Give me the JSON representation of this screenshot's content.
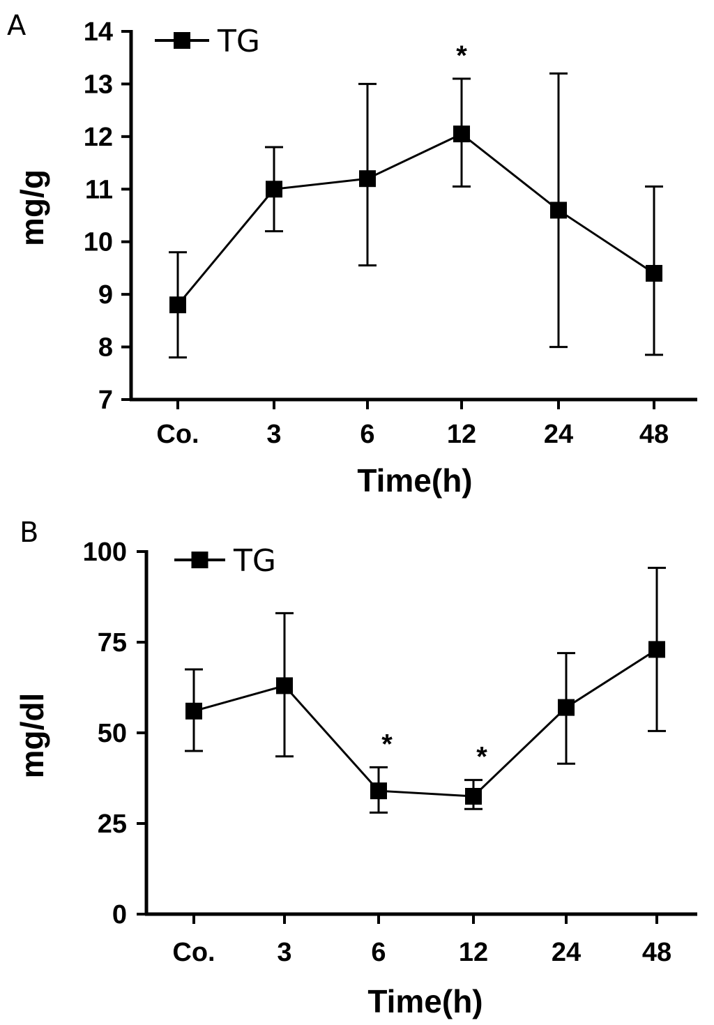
{
  "chart_data": [
    {
      "panel_label": "A",
      "type": "line",
      "title": "",
      "xlabel": "Time(h)",
      "ylabel": "mg/g",
      "categories": [
        "Co.",
        "3",
        "6",
        "12",
        "24",
        "48"
      ],
      "ylim": [
        7,
        14
      ],
      "yticks": [
        "7",
        "8",
        "9",
        "10",
        "11",
        "12",
        "13",
        "14"
      ],
      "legend": {
        "label": "TG",
        "position": "top-left"
      },
      "series": [
        {
          "name": "TG",
          "values": [
            8.8,
            11.0,
            11.2,
            12.05,
            10.6,
            9.4
          ],
          "error_low": [
            7.8,
            10.2,
            9.55,
            11.05,
            8.0,
            7.85
          ],
          "error_high": [
            9.8,
            11.8,
            13.0,
            13.1,
            13.2,
            11.05
          ]
        }
      ],
      "significance": [
        {
          "category": "12",
          "symbol": "*"
        }
      ]
    },
    {
      "panel_label": "B",
      "type": "line",
      "title": "",
      "xlabel": "Time(h)",
      "ylabel": "mg/dl",
      "categories": [
        "Co.",
        "3",
        "6",
        "12",
        "24",
        "48"
      ],
      "ylim": [
        0,
        100
      ],
      "yticks": [
        "0",
        "25",
        "50",
        "75",
        "100"
      ],
      "legend": {
        "label": "TG",
        "position": "top-left"
      },
      "series": [
        {
          "name": "TG",
          "values": [
            56,
            63,
            34,
            32.5,
            57,
            73
          ],
          "error_low": [
            45,
            43.5,
            28,
            29,
            41.5,
            50.5
          ],
          "error_high": [
            67.5,
            83,
            40.5,
            37,
            72,
            95.5
          ]
        }
      ],
      "significance": [
        {
          "category": "6",
          "symbol": "*"
        },
        {
          "category": "12",
          "symbol": "*"
        }
      ]
    }
  ]
}
